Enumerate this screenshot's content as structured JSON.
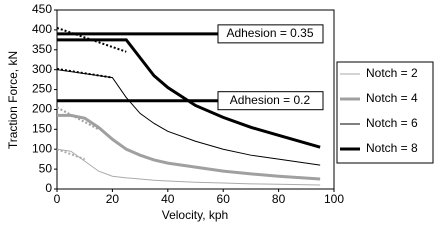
{
  "chart_data": {
    "type": "line",
    "x_label": "Velocity, kph",
    "y_label": "Traction Force, kN",
    "x": [
      0,
      5,
      10,
      15,
      20,
      25,
      30,
      35,
      40,
      50,
      60,
      70,
      80,
      95
    ],
    "series": [
      {
        "name": "Notch = 2",
        "color": "#aaaaaa",
        "width": 1,
        "values": [
          100,
          95,
          70,
          45,
          32,
          28,
          25,
          22,
          20,
          17,
          15,
          13,
          12,
          10
        ],
        "dotted_x": [
          0,
          10
        ],
        "dotted_values": [
          100,
          75
        ]
      },
      {
        "name": "Notch = 4",
        "color": "#a0a0a0",
        "width": 3,
        "values": [
          185,
          185,
          178,
          155,
          125,
          100,
          85,
          73,
          65,
          55,
          45,
          38,
          32,
          25
        ],
        "dotted_x": [
          0,
          15
        ],
        "dotted_values": [
          205,
          150
        ]
      },
      {
        "name": "Notch = 6",
        "color": "#000000",
        "width": 1,
        "values": [
          300,
          295,
          290,
          285,
          280,
          230,
          190,
          165,
          145,
          120,
          100,
          85,
          75,
          60
        ],
        "dotted_x": [
          0,
          20
        ],
        "dotted_values": [
          302,
          280
        ]
      },
      {
        "name": "Notch = 8",
        "color": "#000000",
        "width": 3,
        "values": [
          375,
          375,
          375,
          375,
          375,
          375,
          330,
          285,
          255,
          210,
          180,
          155,
          135,
          105
        ],
        "dotted_x": [
          0,
          25
        ],
        "dotted_values": [
          405,
          345
        ]
      }
    ],
    "annotations": [
      {
        "text": "Adhesion = 0.35",
        "value": 390
      },
      {
        "text": "Adhesion = 0.2",
        "value": 222
      }
    ],
    "xlim": [
      0,
      100
    ],
    "xticks": [
      0,
      20,
      40,
      60,
      80,
      100
    ],
    "ylim": [
      0,
      450
    ],
    "yticks": [
      0,
      50,
      100,
      150,
      200,
      250,
      300,
      350,
      400,
      450
    ],
    "legend": "right"
  }
}
